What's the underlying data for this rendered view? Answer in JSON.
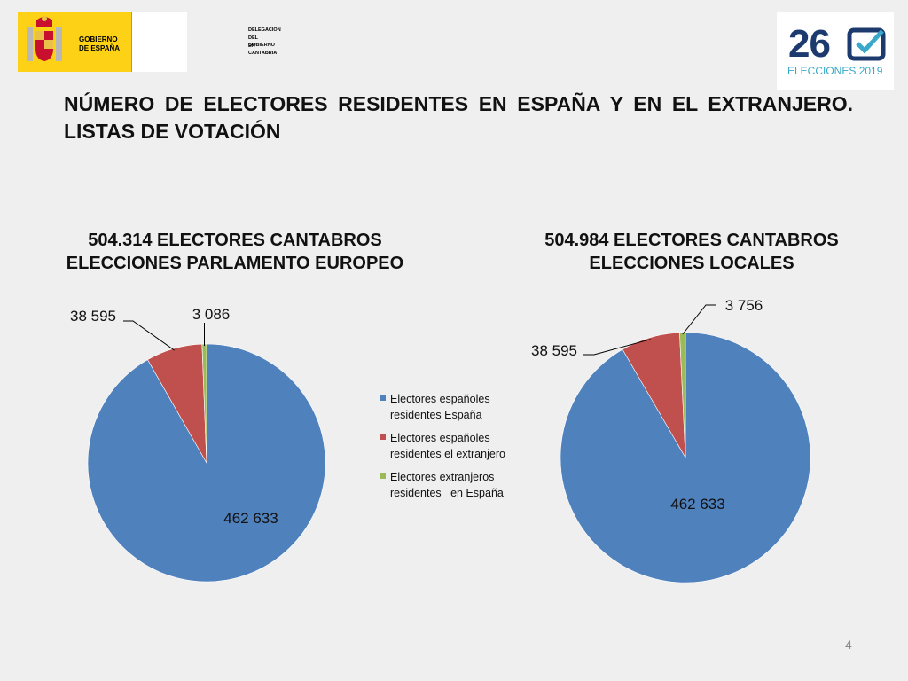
{
  "header": {
    "gov_logo": {
      "line1": "GOBIERNO",
      "line2": "DE ESPAÑA",
      "sub": [
        "DELEGACION",
        "DEL GOBIERNO",
        "EN CANTABRIA"
      ]
    },
    "election_logo": {
      "number": "26",
      "subtitle": "ELECCIONES 2019",
      "color": "#1c3a6e",
      "accent": "#3aa9c9"
    }
  },
  "title": "NÚMERO DE ELECTORES RESIDENTES EN ESPAÑA Y EN EL EXTRANJERO. LISTAS DE VOTACIÓN",
  "page_number": "4",
  "legend": [
    {
      "label": "Electores españoles residentes España",
      "color": "#4f81bd"
    },
    {
      "label": "Electores españoles residentes el extranjero",
      "color": "#c0504d"
    },
    {
      "label": "Electores extranjeros residentes   en España",
      "color": "#9bbb59"
    }
  ],
  "chart_data": [
    {
      "type": "pie",
      "title": "504.314 ELECTORES CANTABROS ELECCIONES PARLAMENTO EUROPEO",
      "title_lines": [
        "504.314 ELECTORES CANTABROS",
        "ELECCIONES PARLAMENTO EUROPEO"
      ],
      "categories": [
        "Electores españoles residentes España",
        "Electores españoles residentes el extranjero",
        "Electores extranjeros residentes   en España"
      ],
      "values": [
        462633,
        38595,
        3086
      ],
      "data_labels": [
        "462 633",
        "38 595",
        "3 086"
      ],
      "colors": [
        "#4f81bd",
        "#c0504d",
        "#9bbb59"
      ],
      "legend": "right"
    },
    {
      "type": "pie",
      "title": "504.984 ELECTORES CANTABROS ELECCIONES LOCALES",
      "title_lines": [
        "504.984 ELECTORES CANTABROS",
        "ELECCIONES LOCALES"
      ],
      "categories": [
        "Electores españoles residentes España",
        "Electores españoles residentes el extranjero",
        "Electores extranjeros residentes   en España"
      ],
      "values": [
        462633,
        38595,
        3756
      ],
      "data_labels": [
        "462 633",
        "38 595",
        "3 756"
      ],
      "colors": [
        "#4f81bd",
        "#c0504d",
        "#9bbb59"
      ],
      "legend": "none"
    }
  ]
}
